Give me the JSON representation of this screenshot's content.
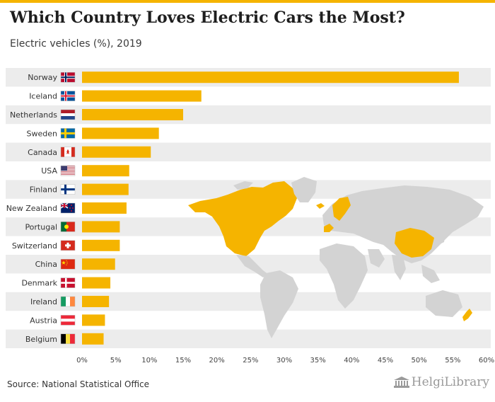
{
  "header": {
    "title": "Which Country Loves Electric Cars the Most?",
    "subtitle": "Electric vehicles (%), 2019"
  },
  "footer": {
    "source": "Source: National Statistical Office",
    "brand": "HelgiLibrary"
  },
  "colors": {
    "bar": "#f5b400",
    "row_band": "#ececec",
    "map_land": "#d3d3d3",
    "map_highlight": "#f5b400",
    "accent": "#f5b400"
  },
  "chart_data": {
    "type": "bar",
    "orientation": "horizontal",
    "categories": [
      "Norway",
      "Iceland",
      "Netherlands",
      "Sweden",
      "Canada",
      "USA",
      "Finland",
      "New Zealand",
      "Portugal",
      "Switzerland",
      "China",
      "Denmark",
      "Ireland",
      "Austria",
      "Belgium"
    ],
    "values": [
      55.9,
      17.7,
      15.0,
      11.4,
      10.2,
      7.0,
      6.9,
      6.6,
      5.6,
      5.6,
      4.9,
      4.2,
      4.0,
      3.4,
      3.2
    ],
    "xlim": [
      0,
      60
    ],
    "x_ticks": [
      "0%",
      "5%",
      "10%",
      "15%",
      "20%",
      "25%",
      "30%",
      "35%",
      "40%",
      "45%",
      "50%",
      "55%",
      "60%"
    ],
    "title": "Which Country Loves Electric Cars the Most?",
    "subtitle": "Electric vehicles (%), 2019",
    "flag_icons": [
      "norway-flag-icon",
      "iceland-flag-icon",
      "netherlands-flag-icon",
      "sweden-flag-icon",
      "canada-flag-icon",
      "usa-flag-icon",
      "finland-flag-icon",
      "new-zealand-flag-icon",
      "portugal-flag-icon",
      "switzerland-flag-icon",
      "china-flag-icon",
      "denmark-flag-icon",
      "ireland-flag-icon",
      "austria-flag-icon",
      "belgium-flag-icon"
    ],
    "background_map": "world-map-highlighting-listed-countries",
    "grid": false
  }
}
